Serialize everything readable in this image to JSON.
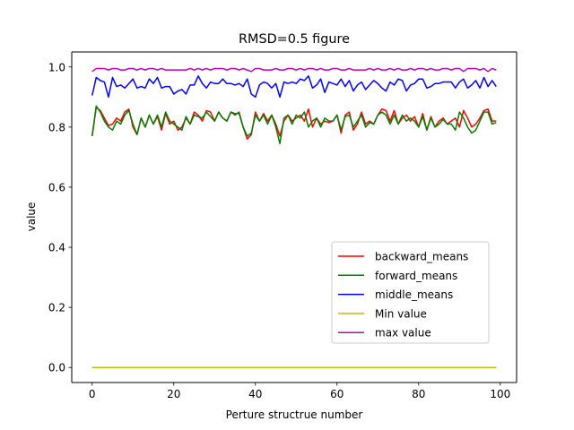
{
  "chart_data": {
    "type": "line",
    "title": "RMSD=0.5 figure",
    "xlabel": "Perture structrue number",
    "ylabel": "value",
    "xlim": [
      -5,
      104
    ],
    "ylim": [
      -0.05,
      1.05
    ],
    "xticks": [
      0,
      20,
      40,
      60,
      80,
      100
    ],
    "yticks": [
      0.0,
      0.2,
      0.4,
      0.6,
      0.8,
      1.0
    ],
    "xtick_labels": [
      "0",
      "20",
      "40",
      "60",
      "80",
      "100"
    ],
    "ytick_labels": [
      "0.0",
      "0.2",
      "0.4",
      "0.6",
      "0.8",
      "1.0"
    ],
    "grid": false,
    "legend_position": "lower-right",
    "x": [
      0,
      1,
      2,
      3,
      4,
      5,
      6,
      7,
      8,
      9,
      10,
      11,
      12,
      13,
      14,
      15,
      16,
      17,
      18,
      19,
      20,
      21,
      22,
      23,
      24,
      25,
      26,
      27,
      28,
      29,
      30,
      31,
      32,
      33,
      34,
      35,
      36,
      37,
      38,
      39,
      40,
      41,
      42,
      43,
      44,
      45,
      46,
      47,
      48,
      49,
      50,
      51,
      52,
      53,
      54,
      55,
      56,
      57,
      58,
      59,
      60,
      61,
      62,
      63,
      64,
      65,
      66,
      67,
      68,
      69,
      70,
      71,
      72,
      73,
      74,
      75,
      76,
      77,
      78,
      79,
      80,
      81,
      82,
      83,
      84,
      85,
      86,
      87,
      88,
      89,
      90,
      91,
      92,
      93,
      94,
      95,
      96,
      97,
      98,
      99
    ],
    "series": [
      {
        "name": "backward_means",
        "color": "#ff0000",
        "values": [
          0.77,
          0.865,
          0.855,
          0.83,
          0.805,
          0.81,
          0.83,
          0.82,
          0.85,
          0.86,
          0.8,
          0.775,
          0.83,
          0.8,
          0.84,
          0.81,
          0.835,
          0.79,
          0.845,
          0.81,
          0.82,
          0.79,
          0.8,
          0.83,
          0.81,
          0.85,
          0.84,
          0.82,
          0.855,
          0.85,
          0.82,
          0.85,
          0.83,
          0.82,
          0.85,
          0.84,
          0.85,
          0.8,
          0.76,
          0.775,
          0.85,
          0.82,
          0.845,
          0.82,
          0.84,
          0.81,
          0.77,
          0.82,
          0.84,
          0.82,
          0.83,
          0.84,
          0.82,
          0.86,
          0.8,
          0.83,
          0.81,
          0.82,
          0.815,
          0.82,
          0.84,
          0.78,
          0.84,
          0.85,
          0.79,
          0.81,
          0.85,
          0.81,
          0.82,
          0.81,
          0.84,
          0.86,
          0.855,
          0.82,
          0.855,
          0.81,
          0.83,
          0.84,
          0.82,
          0.835,
          0.8,
          0.845,
          0.79,
          0.835,
          0.8,
          0.82,
          0.83,
          0.81,
          0.82,
          0.83,
          0.8,
          0.855,
          0.83,
          0.8,
          0.81,
          0.83,
          0.855,
          0.86,
          0.82,
          0.82
        ]
      },
      {
        "name": "forward_means",
        "color": "#008000",
        "values": [
          0.77,
          0.87,
          0.85,
          0.82,
          0.8,
          0.79,
          0.82,
          0.81,
          0.84,
          0.855,
          0.81,
          0.775,
          0.83,
          0.8,
          0.84,
          0.81,
          0.84,
          0.8,
          0.85,
          0.82,
          0.81,
          0.8,
          0.79,
          0.835,
          0.81,
          0.84,
          0.835,
          0.83,
          0.85,
          0.835,
          0.82,
          0.85,
          0.83,
          0.82,
          0.85,
          0.845,
          0.845,
          0.8,
          0.77,
          0.78,
          0.84,
          0.82,
          0.84,
          0.81,
          0.84,
          0.8,
          0.745,
          0.83,
          0.84,
          0.81,
          0.84,
          0.83,
          0.85,
          0.8,
          0.82,
          0.83,
          0.8,
          0.83,
          0.82,
          0.82,
          0.84,
          0.79,
          0.835,
          0.84,
          0.8,
          0.82,
          0.84,
          0.8,
          0.815,
          0.81,
          0.84,
          0.85,
          0.84,
          0.81,
          0.84,
          0.81,
          0.84,
          0.82,
          0.83,
          0.82,
          0.8,
          0.835,
          0.79,
          0.83,
          0.8,
          0.81,
          0.825,
          0.81,
          0.81,
          0.79,
          0.85,
          0.83,
          0.8,
          0.78,
          0.79,
          0.82,
          0.85,
          0.85,
          0.81,
          0.815
        ]
      },
      {
        "name": "middle_means",
        "color": "#0000ff",
        "values": [
          0.905,
          0.965,
          0.955,
          0.95,
          0.9,
          0.965,
          0.935,
          0.94,
          0.93,
          0.945,
          0.96,
          0.93,
          0.935,
          0.93,
          0.96,
          0.945,
          0.965,
          0.93,
          0.935,
          0.935,
          0.91,
          0.92,
          0.925,
          0.91,
          0.94,
          0.94,
          0.97,
          0.945,
          0.93,
          0.95,
          0.945,
          0.945,
          0.96,
          0.945,
          0.945,
          0.94,
          0.945,
          0.935,
          0.96,
          0.91,
          0.9,
          0.94,
          0.95,
          0.945,
          0.93,
          0.945,
          0.9,
          0.95,
          0.945,
          0.95,
          0.945,
          0.96,
          0.955,
          0.97,
          0.93,
          0.94,
          0.96,
          0.915,
          0.95,
          0.945,
          0.94,
          0.96,
          0.935,
          0.955,
          0.92,
          0.94,
          0.95,
          0.925,
          0.94,
          0.955,
          0.945,
          0.93,
          0.92,
          0.95,
          0.94,
          0.96,
          0.955,
          0.92,
          0.94,
          0.945,
          0.96,
          0.96,
          0.93,
          0.935,
          0.945,
          0.945,
          0.95,
          0.95,
          0.95,
          0.93,
          0.95,
          0.96,
          0.93,
          0.94,
          0.955,
          0.93,
          0.965,
          0.935,
          0.955,
          0.935
        ]
      },
      {
        "name": "Min value",
        "color": "#bfbf00",
        "values": [
          0,
          0,
          0,
          0,
          0,
          0,
          0,
          0,
          0,
          0,
          0,
          0,
          0,
          0,
          0,
          0,
          0,
          0,
          0,
          0,
          0,
          0,
          0,
          0,
          0,
          0,
          0,
          0,
          0,
          0,
          0,
          0,
          0,
          0,
          0,
          0,
          0,
          0,
          0,
          0,
          0,
          0,
          0,
          0,
          0,
          0,
          0,
          0,
          0,
          0,
          0,
          0,
          0,
          0,
          0,
          0,
          0,
          0,
          0,
          0,
          0,
          0,
          0,
          0,
          0,
          0,
          0,
          0,
          0,
          0,
          0,
          0,
          0,
          0,
          0,
          0,
          0,
          0,
          0,
          0,
          0,
          0,
          0,
          0,
          0,
          0,
          0,
          0,
          0,
          0,
          0,
          0,
          0,
          0,
          0,
          0,
          0,
          0,
          0,
          0
        ]
      },
      {
        "name": "max value",
        "color": "#bf00bf",
        "values": [
          0.985,
          0.995,
          0.995,
          0.995,
          0.99,
          0.995,
          0.995,
          0.99,
          0.99,
          0.995,
          0.995,
          0.99,
          0.995,
          0.99,
          0.995,
          0.995,
          0.99,
          0.995,
          0.99,
          0.99,
          0.99,
          0.99,
          0.99,
          0.99,
          0.995,
          0.99,
          0.995,
          0.99,
          0.995,
          0.99,
          0.995,
          0.995,
          0.995,
          0.99,
          0.995,
          0.995,
          0.99,
          0.995,
          0.99,
          0.985,
          0.995,
          0.995,
          0.99,
          0.99,
          0.99,
          0.995,
          0.99,
          0.99,
          0.995,
          0.995,
          0.99,
          0.995,
          0.99,
          0.995,
          0.995,
          0.99,
          0.995,
          0.99,
          0.99,
          0.995,
          0.995,
          0.99,
          0.99,
          0.995,
          0.99,
          0.99,
          0.99,
          0.99,
          0.995,
          0.99,
          0.995,
          0.99,
          0.99,
          0.995,
          0.99,
          0.995,
          0.99,
          0.99,
          0.995,
          0.99,
          0.995,
          0.995,
          0.99,
          0.995,
          0.99,
          0.99,
          0.995,
          0.995,
          0.99,
          0.995,
          0.995,
          0.985,
          0.995,
          0.995,
          0.995,
          0.99,
          0.995,
          0.985,
          0.995,
          0.99
        ]
      }
    ]
  }
}
